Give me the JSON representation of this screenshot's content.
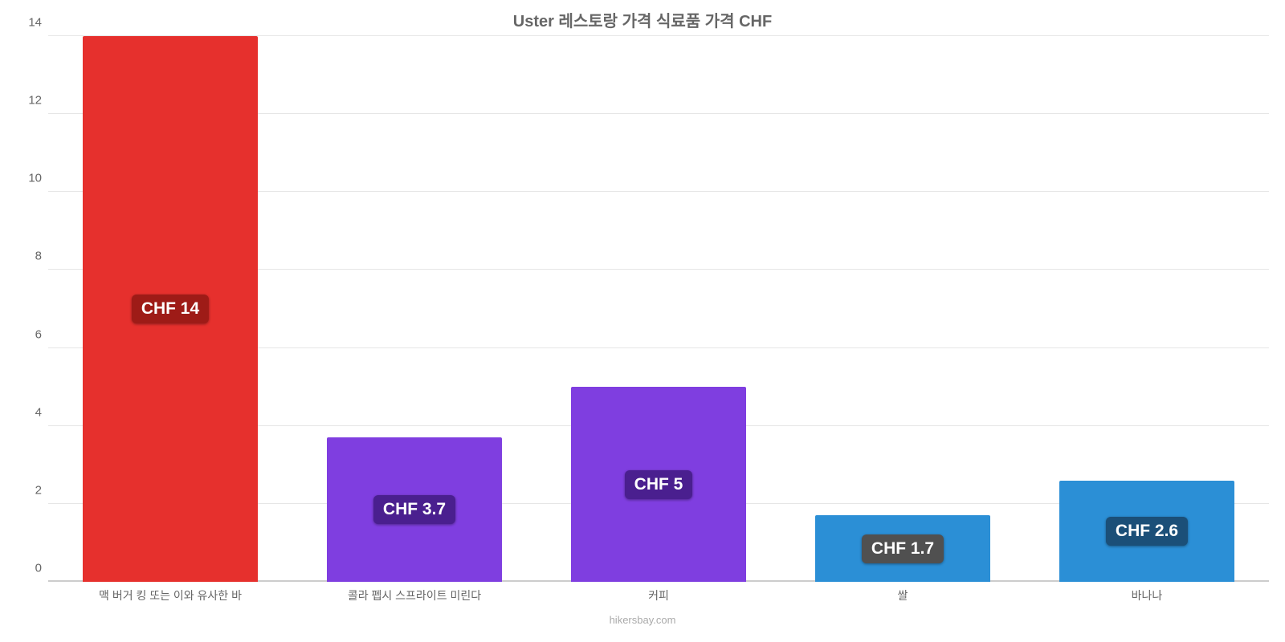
{
  "chart": {
    "type": "bar",
    "title": "Uster 레스토랑 가격 식료품 가격 CHF",
    "title_fontsize": 20,
    "title_color": "#666666",
    "background_color": "#ffffff",
    "grid_color": "#e6e6e6",
    "axis_color": "#cccccc",
    "y_tick_label_color": "#666666",
    "y_tick_fontsize": 15,
    "x_label_color": "#666666",
    "x_label_fontsize": 14,
    "bar_label_fontsize": 21,
    "bar_label_text_color": "#ffffff",
    "footer_fontsize": 13,
    "footer_color": "#aaaaaa",
    "ymin": 0,
    "ymax": 14,
    "ytick_step": 2,
    "y_ticks": [
      0,
      2,
      4,
      6,
      8,
      10,
      12,
      14
    ],
    "bar_width_percent": 72,
    "categories": [
      {
        "label": "맥 버거 킹 또는 이와 유사한 바",
        "value": 14,
        "display": "CHF 14",
        "bar_color": "#e6302d",
        "badge_color": "#9e1b17"
      },
      {
        "label": "콜라 펩시 스프라이트 미린다",
        "value": 3.7,
        "display": "CHF 3.7",
        "bar_color": "#7f3ee0",
        "badge_color": "#4a1f8f"
      },
      {
        "label": "커피",
        "value": 5,
        "display": "CHF 5",
        "bar_color": "#7f3ee0",
        "badge_color": "#4a1f8f"
      },
      {
        "label": "쌀",
        "value": 1.7,
        "display": "CHF 1.7",
        "bar_color": "#2b8fd6",
        "badge_color": "#505050"
      },
      {
        "label": "바나나",
        "value": 2.6,
        "display": "CHF 2.6",
        "bar_color": "#2b8fd6",
        "badge_color": "#1b4f78"
      }
    ],
    "footer": "hikersbay.com"
  }
}
